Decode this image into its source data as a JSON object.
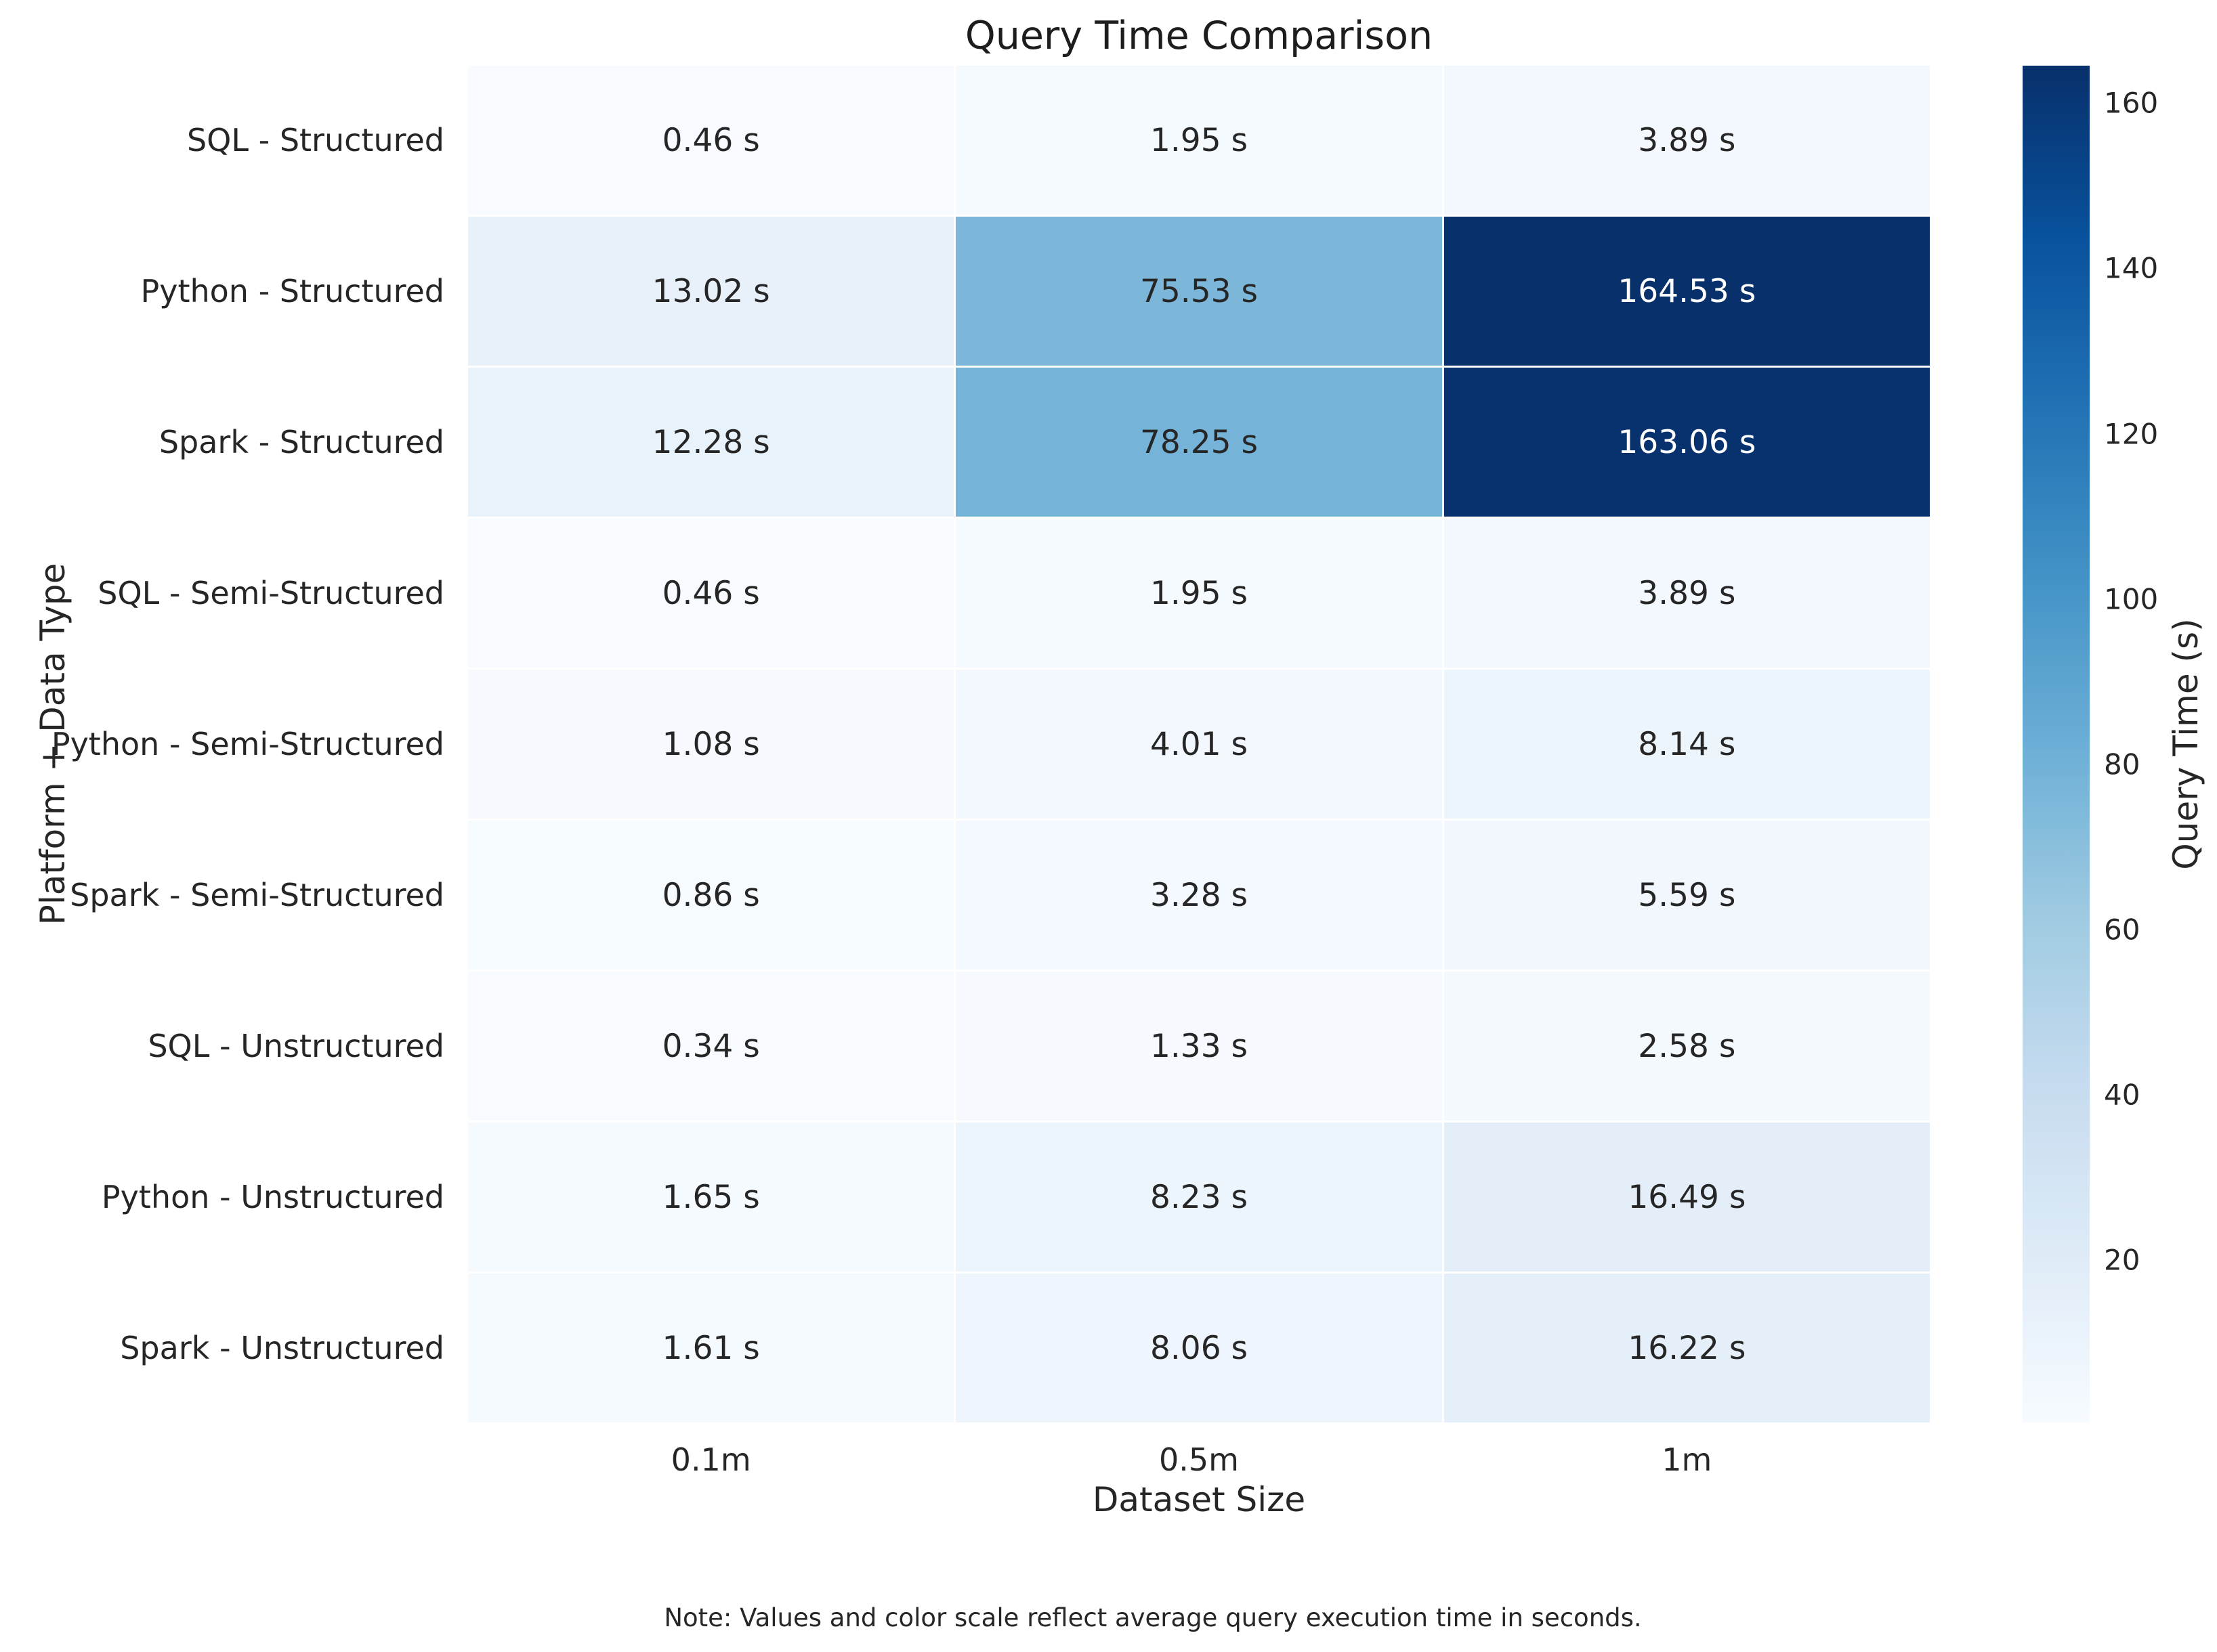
{
  "title": "Query Time Comparison",
  "note": "Note: Values and color scale reflect average query execution time in seconds.",
  "chart_data": {
    "type": "heatmap",
    "title": "Query Time Comparison",
    "xlabel": "Dataset Size",
    "ylabel": "Platform + Data Type",
    "columns": [
      "0.1m",
      "0.5m",
      "1m"
    ],
    "rows": [
      "SQL - Structured",
      "Python - Structured",
      "Spark - Structured",
      "SQL - Semi-Structured",
      "Python - Semi-Structured",
      "Spark - Semi-Structured",
      "SQL - Unstructured",
      "Python - Unstructured",
      "Spark - Unstructured"
    ],
    "values": [
      [
        0.46,
        1.95,
        3.89
      ],
      [
        13.02,
        75.53,
        164.53
      ],
      [
        12.28,
        78.25,
        163.06
      ],
      [
        0.46,
        1.95,
        3.89
      ],
      [
        1.08,
        4.01,
        8.14
      ],
      [
        0.86,
        3.28,
        5.59
      ],
      [
        0.34,
        1.33,
        2.58
      ],
      [
        1.65,
        8.23,
        16.49
      ],
      [
        1.61,
        8.06,
        16.22
      ]
    ],
    "unit": "s",
    "vmin": 0.34,
    "vmax": 164.53,
    "colormap": "Blues",
    "colorbar_label": "Query Time (s)",
    "colorbar_ticks": [
      20,
      40,
      60,
      80,
      100,
      120,
      140,
      160
    ],
    "colormap_stops_bottom_to_top": [
      "#f7fbff",
      "#deebf7",
      "#c6dbef",
      "#9ecae1",
      "#6baed6",
      "#4292c6",
      "#2171b5",
      "#08519c",
      "#08306b"
    ],
    "cell_colors": [
      [
        "#f7fbff",
        "#f5fafe",
        "#f3f8fe"
      ],
      [
        "#e8f1fa",
        "#7cb7da",
        "#08306b"
      ],
      [
        "#e8f2fa",
        "#75b4d8",
        "#08326e"
      ],
      [
        "#f7fbff",
        "#f5fafe",
        "#f3f8fe"
      ],
      [
        "#f6faff",
        "#f2f8fd",
        "#edf5fc"
      ],
      [
        "#f6fbff",
        "#f3f9fe",
        "#f1f7fd"
      ],
      [
        "#f7fbff",
        "#f6fafe",
        "#f4f9fe"
      ],
      [
        "#f5fafe",
        "#edf5fc",
        "#e3eef9"
      ],
      [
        "#f5fafe",
        "#eef5fc",
        "#e4eff9"
      ]
    ],
    "cell_text_colors": [
      [
        "#262626",
        "#262626",
        "#262626"
      ],
      [
        "#262626",
        "#262626",
        "#ffffff"
      ],
      [
        "#262626",
        "#262626",
        "#ffffff"
      ],
      [
        "#262626",
        "#262626",
        "#262626"
      ],
      [
        "#262626",
        "#262626",
        "#262626"
      ],
      [
        "#262626",
        "#262626",
        "#262626"
      ],
      [
        "#262626",
        "#262626",
        "#262626"
      ],
      [
        "#262626",
        "#262626",
        "#262626"
      ],
      [
        "#262626",
        "#262626",
        "#262626"
      ]
    ],
    "note": "Note: Values and color scale reflect average query execution time in seconds.",
    "text_color": "#262626",
    "background": "#ffffff"
  }
}
